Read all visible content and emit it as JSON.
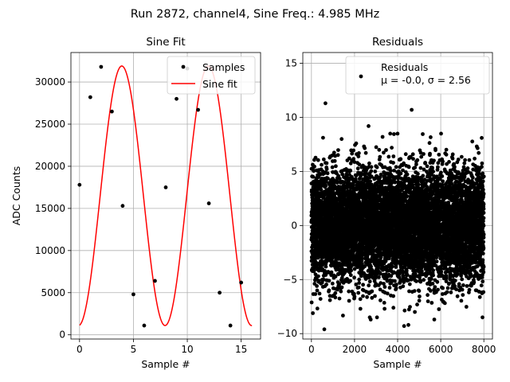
{
  "figure": {
    "suptitle": "Run 2872, channel4, Sine Freq.: 4.985 MHz"
  },
  "colors": {
    "samples": "#000000",
    "fit": "#ff0000",
    "residuals": "#000000",
    "grid": "#b0b0b0"
  },
  "chart_data": [
    {
      "type": "scatter",
      "title": "Sine Fit",
      "xlabel": "Sample #",
      "ylabel": "ADC Counts",
      "xlim": [
        -0.8,
        16.8
      ],
      "ylim": [
        -500,
        33500
      ],
      "xticks": [
        "0",
        "5",
        "10",
        "15"
      ],
      "yticks": [
        "0",
        "5000",
        "10000",
        "15000",
        "20000",
        "25000",
        "30000"
      ],
      "grid": true,
      "legend_position": "top-right",
      "series": [
        {
          "name": "Samples",
          "marker": "point",
          "x": [
            0,
            1,
            2,
            3,
            4,
            5,
            6,
            7,
            8,
            9,
            10,
            11,
            12,
            13,
            14,
            15
          ],
          "y": [
            17800,
            28200,
            31800,
            26500,
            15300,
            4800,
            1100,
            6400,
            17500,
            28000,
            31600,
            26700,
            15600,
            5000,
            1100,
            6200
          ]
        },
        {
          "name": "Sine fit",
          "marker": "line",
          "model": {
            "offset": 16500,
            "amplitude": 15400,
            "period_samples": 8.03,
            "phase_deg": 85.8,
            "x_range": [
              0,
              16
            ]
          }
        }
      ]
    },
    {
      "type": "scatter",
      "title": "Residuals",
      "xlabel": "Sample #",
      "ylabel": "",
      "xlim": [
        -400,
        8400
      ],
      "ylim": [
        -10.5,
        16
      ],
      "xticks": [
        "0",
        "2000",
        "4000",
        "6000",
        "8000"
      ],
      "yticks": [
        "−10",
        "−5",
        "0",
        "5",
        "10",
        "15"
      ],
      "grid": true,
      "legend_position": "top-right",
      "series": [
        {
          "name": "Residuals",
          "stats_label": "μ = -0.0, σ = 2.56",
          "n_points": 8000,
          "mean": 0.0,
          "std": 2.56,
          "outliers": [
            {
              "x": 650,
              "y": 11.3
            },
            {
              "x": 2650,
              "y": 9.2
            },
            {
              "x": 4650,
              "y": 10.7
            },
            {
              "x": 600,
              "y": -9.6
            },
            {
              "x": 2750,
              "y": -8.7
            },
            {
              "x": 4300,
              "y": -9.3
            },
            {
              "x": 4500,
              "y": -9.2
            },
            {
              "x": 5700,
              "y": -8.7
            },
            {
              "x": 7900,
              "y": 8.1
            },
            {
              "x": 1400,
              "y": 8.0
            },
            {
              "x": 3300,
              "y": 8.2
            }
          ]
        }
      ]
    }
  ]
}
